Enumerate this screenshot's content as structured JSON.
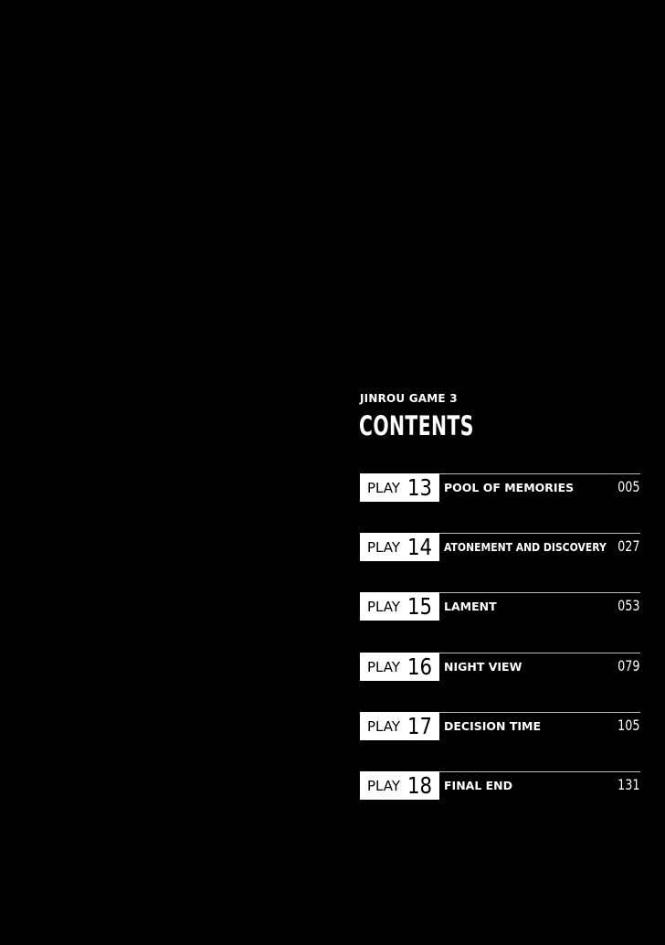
{
  "header": {
    "series": "JINROU GAME 3",
    "title": "CONTENTS"
  },
  "entries": [
    {
      "label": "PLAY",
      "number": "13",
      "title": "POOL OF MEMORIES",
      "page": "005"
    },
    {
      "label": "PLAY",
      "number": "14",
      "title": "ATONEMENT AND DISCOVERY",
      "page": "027"
    },
    {
      "label": "PLAY",
      "number": "15",
      "title": "LAMENT",
      "page": "053"
    },
    {
      "label": "PLAY",
      "number": "16",
      "title": "NIGHT VIEW",
      "page": "079"
    },
    {
      "label": "PLAY",
      "number": "17",
      "title": "DECISION TIME",
      "page": "105"
    },
    {
      "label": "PLAY",
      "number": "18",
      "title": "FINAL END",
      "page": "131"
    }
  ]
}
